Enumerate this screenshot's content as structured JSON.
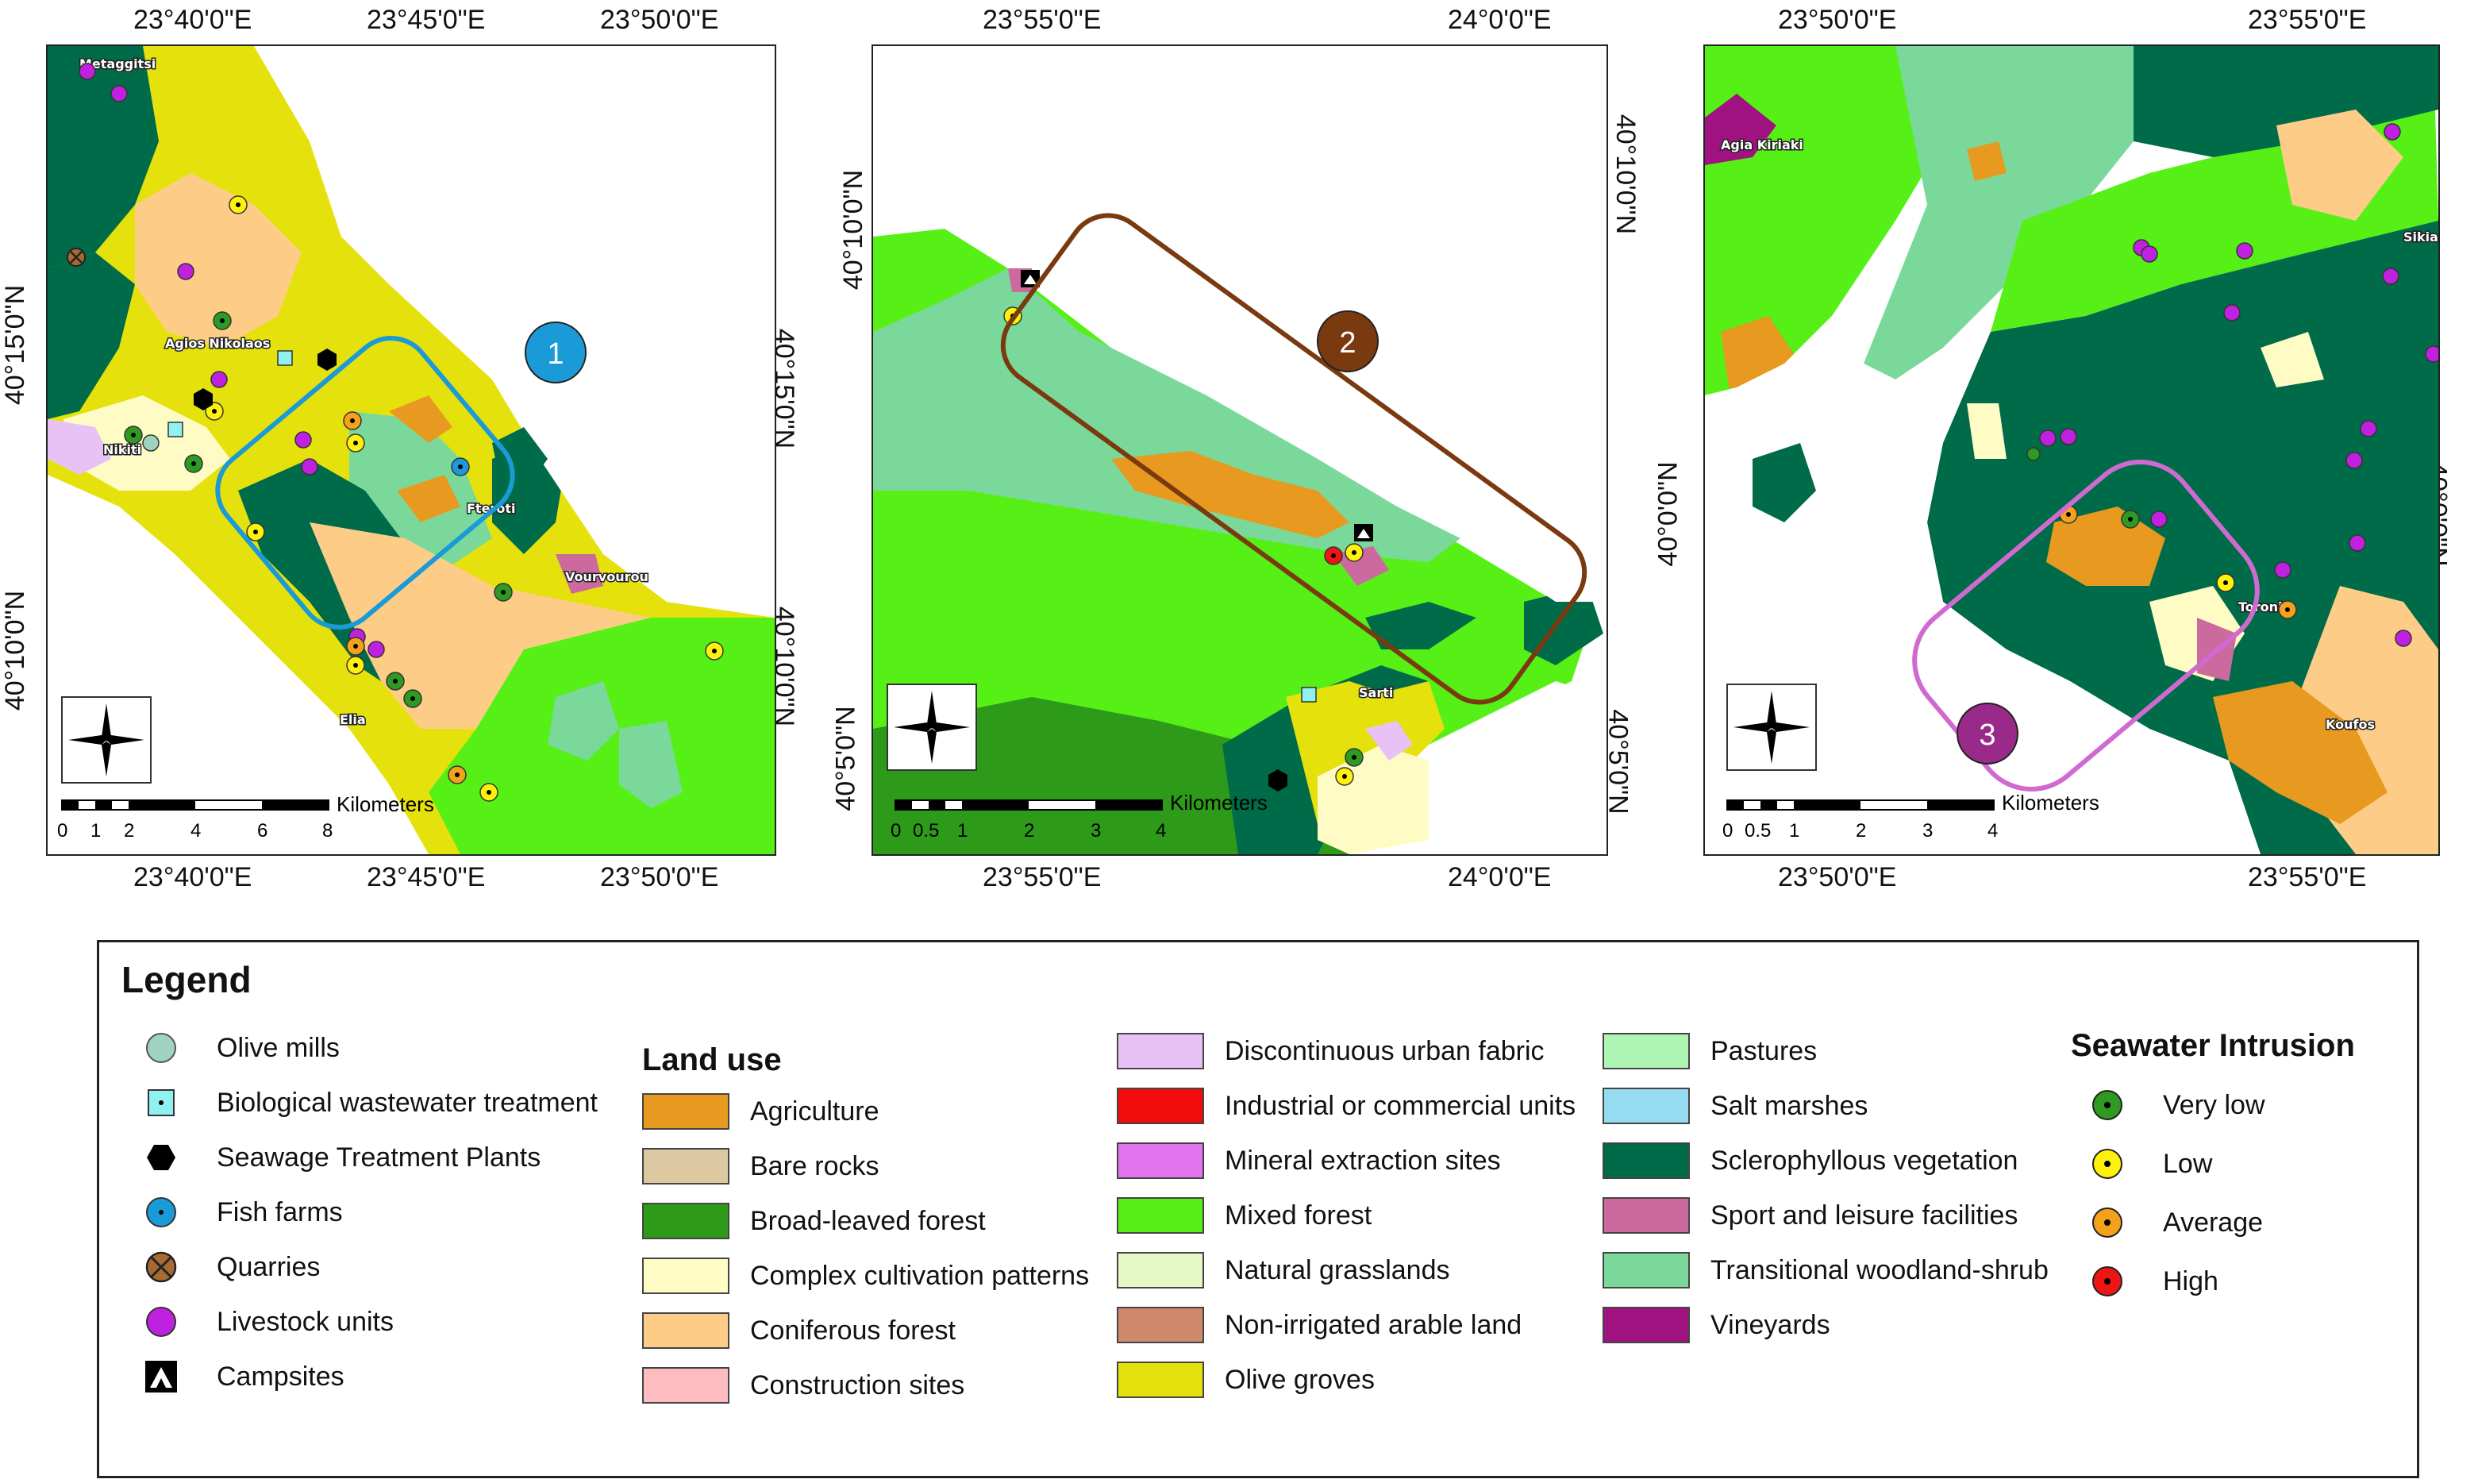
{
  "maps": [
    {
      "id": "1",
      "top_labels": [
        "23°40'0\"E",
        "23°45'0\"E",
        "23°50'0\"E"
      ],
      "bottom_labels": [
        "23°40'0\"E",
        "23°45'0\"E",
        "23°50'0\"E"
      ],
      "left_labels": [
        "40°15'0\"N",
        "40°10'0\"N"
      ],
      "right_labels": [
        "40°15'0\"N",
        "40°10'0\"N"
      ],
      "towns": [
        "Metaggitsi",
        "Agios Nikolaos",
        "Nikiti",
        "Fteroti",
        "Vourvourou",
        "Elia"
      ],
      "scale_title": "Kilometers",
      "scale_ticks": [
        "0",
        "1",
        "2",
        "4",
        "6",
        "8"
      ],
      "zone_label": "1",
      "zone_color": "#1a9bd7"
    },
    {
      "id": "2",
      "top_labels": [
        "23°55'0\"E",
        "24°0'0\"E"
      ],
      "bottom_labels": [
        "23°55'0\"E",
        "24°0'0\"E"
      ],
      "left_labels": [
        "40°10'0\"N",
        "40°5'0\"N"
      ],
      "right_labels": [
        "40°10'0\"N",
        "40°5'0\"N"
      ],
      "towns": [
        "Sarti"
      ],
      "scale_title": "Kilometers",
      "scale_ticks": [
        "0",
        "0.5",
        "1",
        "2",
        "3",
        "4"
      ],
      "zone_label": "2",
      "zone_color": "#7a3a10"
    },
    {
      "id": "3",
      "top_labels": [
        "23°50'0\"E",
        "23°55'0\"E"
      ],
      "bottom_labels": [
        "23°50'0\"E",
        "23°55'0\"E"
      ],
      "left_labels": [
        "40°0'0\"N"
      ],
      "right_labels": [
        "40°0'0\"N"
      ],
      "towns": [
        "Agia Kiriaki",
        "Sikia",
        "Toroni",
        "Koufos"
      ],
      "scale_title": "Kilometers",
      "scale_ticks": [
        "0",
        "0.5",
        "1",
        "2",
        "3",
        "4"
      ],
      "zone_label": "3",
      "zone_color": "#d06ad0"
    }
  ],
  "legend": {
    "title": "Legend",
    "facilities": [
      {
        "label": "Olive mills",
        "icon": "olive-mill-circle",
        "color": "#9fd3bf"
      },
      {
        "label": "Biological wastewater treatment",
        "icon": "wastewater-square",
        "color": "#8ff1f0"
      },
      {
        "label": "Seawage Treatment Plants",
        "icon": "sewage-hexagon",
        "color": "#000000"
      },
      {
        "label": "Fish farms",
        "icon": "fish-farm-circle",
        "color": "#1b9ad9"
      },
      {
        "label": "Quarries",
        "icon": "quarry-crossed-circle",
        "color": "#a86a32"
      },
      {
        "label": "Livestock units",
        "icon": "livestock-circle",
        "color": "#c020e0"
      },
      {
        "label": "Campsites",
        "icon": "campsite-triangle",
        "color": "#000000"
      }
    ],
    "land_use_title": "Land use",
    "land_use": [
      {
        "label": "Agriculture",
        "color": "#e79a1f"
      },
      {
        "label": "Bare rocks",
        "color": "#dcc9a2"
      },
      {
        "label": "Broad-leaved forest",
        "color": "#2d9a1a"
      },
      {
        "label": "Complex cultivation patterns",
        "color": "#fefcc4"
      },
      {
        "label": "Coniferous forest",
        "color": "#fdcd88"
      },
      {
        "label": "Construction sites",
        "color": "#fcbcc0"
      },
      {
        "label": "Discontinuous urban fabric",
        "color": "#e8c2f4"
      },
      {
        "label": "Industrial or commercial units",
        "color": "#f20b0b"
      },
      {
        "label": "Mineral extraction sites",
        "color": "#e374f0"
      },
      {
        "label": "Mixed forest",
        "color": "#57f016"
      },
      {
        "label": "Natural grasslands",
        "color": "#e5f8c6"
      },
      {
        "label": "Non-irrigated arable land",
        "color": "#d0896a"
      },
      {
        "label": "Olive groves",
        "color": "#e5e10d"
      },
      {
        "label": "Pastures",
        "color": "#aef5b4"
      },
      {
        "label": "Salt marshes",
        "color": "#96dcf0"
      },
      {
        "label": "Sclerophyllous vegetation",
        "color": "#006b48"
      },
      {
        "label": "Sport and leisure facilities",
        "color": "#cc6aa0"
      },
      {
        "label": "Transitional woodland-shrub",
        "color": "#7ad99a"
      },
      {
        "label": "Vineyards",
        "color": "#a0127f"
      }
    ],
    "seawater_title": "Seawater Intrusion",
    "seawater": [
      {
        "label": "Very low",
        "color": "#2e9a21"
      },
      {
        "label": "Low",
        "color": "#fef20c"
      },
      {
        "label": "Average",
        "color": "#f4a21b"
      },
      {
        "label": "High",
        "color": "#ee1515"
      }
    ]
  }
}
